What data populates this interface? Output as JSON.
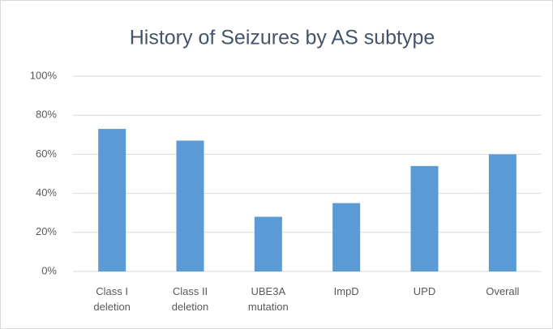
{
  "chart_data": {
    "type": "bar",
    "title": "History of Seizures by AS subtype",
    "categories": [
      "Class I deletion",
      "Class II deletion",
      "UBE3A mutation",
      "ImpD",
      "UPD",
      "Overall"
    ],
    "values": [
      73,
      67,
      28,
      35,
      54,
      60
    ],
    "color": "#5b9bd5",
    "ylim": [
      0,
      100
    ],
    "yticks": [
      {
        "value": 0,
        "label": "0%"
      },
      {
        "value": 20,
        "label": "20%"
      },
      {
        "value": 40,
        "label": "40%"
      },
      {
        "value": 60,
        "label": "60%"
      },
      {
        "value": 80,
        "label": "80%"
      },
      {
        "value": 100,
        "label": "100%"
      }
    ],
    "grid": true
  }
}
